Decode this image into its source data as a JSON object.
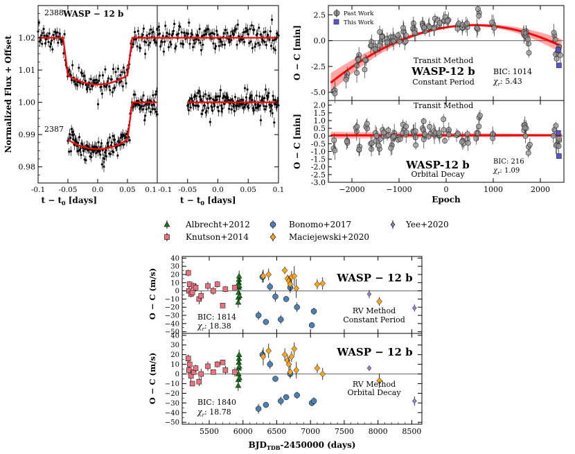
{
  "colors": {
    "model": "#ff0000",
    "zero": "#808080",
    "axis": "#000000",
    "past": "#999999",
    "this": "#5555cc",
    "albrecht": "#1a7a1a",
    "knutson": "#e8727e",
    "bonomo": "#4d7fb3",
    "maciejewski": "#f5a623",
    "yee": "#9b7fc9"
  },
  "panel_a": {
    "ylabel": "Normalized Flux + Offset",
    "xlabel_main": "t − t",
    "xlabel_sub": "0",
    "xlabel_unit": "[days]",
    "planet_label": "WASP − 12 b",
    "epoch_upper": "2388",
    "epoch_lower": "2387",
    "yticks": [
      "0.98",
      "0.99",
      "1.00",
      "1.01",
      "1.02"
    ],
    "xticks_left": [
      "-0.1",
      "-0.05",
      "0.0",
      "0.05",
      "0.1"
    ],
    "xticks_right": [
      "-0.1",
      "-0.05",
      "0.0",
      "0.05",
      "0.1"
    ]
  },
  "panel_b": {
    "ylabel": "O − C [min]",
    "xlabel": "Epoch",
    "top": {
      "legend_past": "Past Work",
      "legend_this": "This Work",
      "method": "Transit Method",
      "planet": "WASP-12 b",
      "model": "Constant Period",
      "bic": "BIC: 1014",
      "chi_label": "χ",
      "chi_sub": "r",
      "chi_value": ": 5.43",
      "yticks": [
        "2.5",
        "0.0",
        "-2.5",
        "-5.0"
      ]
    },
    "bottom": {
      "method": "Transit Method",
      "planet": "WASP-12 b",
      "model": "Orbital Decay",
      "bic": "BIC: 216",
      "chi_label": "χ",
      "chi_sub": "r",
      "chi_value": ": 1.09",
      "yticks": [
        "2.0",
        "1.5",
        "1.0",
        "0.5",
        "0.0",
        "-0.5",
        "-1.0",
        "-1.5",
        "-2.0",
        "-2.5",
        "-3.0"
      ]
    },
    "xticks": [
      "−2000",
      "−1000",
      "0",
      "1000",
      "2000"
    ]
  },
  "panel_c": {
    "legend": [
      {
        "label": "Albrecht+2012",
        "key": "albrecht"
      },
      {
        "label": "Knutson+2014",
        "key": "knutson"
      },
      {
        "label": "Bonomo+2017",
        "key": "bonomo"
      },
      {
        "label": "Maciejewski+2020",
        "key": "maciejewski"
      },
      {
        "label": "Yee+2020",
        "key": "yee"
      }
    ],
    "ylabel": "O − C (m/s)",
    "xlabel_main": "BJD",
    "xlabel_sub": "TDB",
    "xlabel_rest": "-2450000 (days)",
    "top": {
      "planet": "WASP − 12 b",
      "method": "RV Method",
      "model": "Constant Period",
      "bic": "BIC: 1814",
      "chi_label": "χ",
      "chi_sub": "r",
      "chi_value": ": 18.38"
    },
    "bottom": {
      "planet": "WASP − 12 b",
      "method": "RV Method",
      "model": "Orbital Decay",
      "bic": "BIC: 1840",
      "chi_label": "χ",
      "chi_sub": "r",
      "chi_value": ": 18.78"
    },
    "yticks": [
      "40",
      "30",
      "20",
      "10",
      "0",
      "−10",
      "−20",
      "−30",
      "−40",
      "−50"
    ],
    "xticks": [
      "5500",
      "6000",
      "6500",
      "7000",
      "7500",
      "8000",
      "8500"
    ]
  },
  "chart_data": [
    {
      "type": "scatter",
      "title": "WASP − 12 b transit light curves (epochs 2388, 2387)",
      "xlabel": "t − t0 [days]",
      "ylabel": "Normalized Flux + Offset",
      "xlim": [
        -0.1,
        0.1
      ],
      "ylim": [
        0.975,
        1.03
      ],
      "transit": {
        "depth": 0.0145,
        "t_ingress": 0.058,
        "duration_half": 0.05
      },
      "series": [
        {
          "name": "2388 (fit)",
          "baseline": 1.02,
          "noise": 0.0018
        },
        {
          "name": "2387 (fit)",
          "baseline": 1.0,
          "noise": 0.0018,
          "start": -0.05
        },
        {
          "name": "2388 (residuals)",
          "baseline": 1.02,
          "noise": 0.0018
        },
        {
          "name": "2387 (residuals)",
          "baseline": 1.0,
          "noise": 0.0018,
          "start": -0.05
        }
      ]
    },
    {
      "type": "scatter",
      "title": "Transit timing O − C, Constant Period",
      "xlabel": "Epoch",
      "ylabel": "O − C [min]",
      "xlim": [
        -2500,
        2500
      ],
      "ylim": [
        -5.8,
        3.4
      ],
      "model": {
        "type": "quadratic",
        "peak_epoch": 600,
        "peak_value": 1.5,
        "a": -6e-07
      },
      "past_epochs": [
        -2390,
        -2100,
        -1900,
        -1850,
        -1700,
        -1600,
        -1500,
        -1400,
        -1350,
        -1250,
        -1150,
        -1100,
        -1000,
        -900,
        -850,
        -700,
        -650,
        -500,
        -450,
        -350,
        -250,
        -150,
        -50,
        50,
        250,
        350,
        450,
        650,
        700,
        1000,
        1650,
        1700,
        1750,
        2300,
        2350,
        2400
      ],
      "past_values": [
        -4.9,
        -3.2,
        -2.4,
        -1.4,
        -1.9,
        -0.5,
        -0.9,
        -0.2,
        0.1,
        -0.3,
        0.0,
        0.2,
        0.3,
        0.9,
        0.5,
        1.1,
        0.7,
        1.6,
        0.9,
        1.3,
        1.3,
        1.5,
        1.9,
        2.0,
        1.5,
        1.2,
        1.3,
        1.2,
        2.7,
        1.6,
        0.6,
        0.9,
        -0.3,
        0.5,
        -1.2,
        -0.6
      ],
      "this_epochs": [
        2380,
        2395
      ],
      "this_values": [
        -0.9,
        -2.4
      ]
    },
    {
      "type": "scatter",
      "title": "Transit timing O − C, Orbital Decay",
      "xlabel": "Epoch",
      "ylabel": "O − C [min]",
      "xlim": [
        -2500,
        2500
      ],
      "ylim": [
        -3.0,
        2.3
      ],
      "model": {
        "type": "flat",
        "value": 0.05
      },
      "past_epochs": [
        -2390,
        -2100,
        -1900,
        -1850,
        -1700,
        -1600,
        -1500,
        -1400,
        -1350,
        -1250,
        -1150,
        -1100,
        -1000,
        -900,
        -850,
        -700,
        -650,
        -500,
        -450,
        -350,
        -250,
        -150,
        -50,
        50,
        250,
        350,
        450,
        650,
        700,
        1000,
        1650,
        1700,
        1750,
        2300,
        2350,
        2400
      ],
      "past_values": [
        -0.8,
        -0.3,
        0.3,
        -0.9,
        0.6,
        -0.5,
        0.2,
        -0.2,
        0.4,
        0.0,
        -0.6,
        0.2,
        -0.1,
        0.4,
        0.1,
        0.3,
        -0.1,
        0.5,
        0.0,
        0.6,
        0.1,
        0.0,
        0.4,
        0.3,
        0.1,
        -0.3,
        -0.2,
        0.2,
        1.2,
        0.1,
        0.7,
        0.5,
        -0.7,
        0.4,
        -0.6,
        -0.3
      ],
      "this_epochs": [
        2380,
        2395
      ],
      "this_values": [
        0.2,
        -1.3
      ]
    },
    {
      "type": "scatter",
      "title": "RV O − C, Constant Period",
      "xlabel": "BJD_TDB-2450000 (days)",
      "ylabel": "O − C (m/s)",
      "xlim": [
        5100,
        8650
      ],
      "ylim": [
        -52,
        42
      ],
      "series": [
        {
          "name": "Albrecht+2012",
          "x": [
            5930,
            5933,
            5935,
            5937,
            5939,
            5941,
            5943,
            5945,
            5947
          ],
          "y": [
            -14,
            -8,
            -2,
            4,
            10,
            14,
            18,
            6,
            -6
          ]
        },
        {
          "name": "Knutson+2014",
          "x": [
            5190,
            5200,
            5210,
            5230,
            5250,
            5270,
            5300,
            5350,
            5380,
            5480,
            5560,
            5620,
            5700,
            5740,
            5880
          ],
          "y": [
            22,
            0,
            8,
            -4,
            -2,
            6,
            4,
            -10,
            -6,
            6,
            0,
            8,
            -18,
            2,
            4
          ]
        },
        {
          "name": "Bonomo+2017",
          "x": [
            6230,
            6290,
            6340,
            6400,
            6480,
            6560,
            6640,
            6700,
            6800,
            7020,
            7050
          ],
          "y": [
            -30,
            17,
            -38,
            5,
            -7,
            -35,
            -10,
            4,
            -20,
            -42,
            -25
          ]
        },
        {
          "name": "Maciejewski+2020",
          "x": [
            6300,
            6380,
            6620,
            6660,
            6680,
            6700,
            6720,
            6760,
            6790,
            7100,
            7180,
            8020
          ],
          "y": [
            18,
            20,
            25,
            15,
            12,
            8,
            17,
            18,
            3,
            8,
            9,
            -13
          ]
        },
        {
          "name": "Yee+2020",
          "x": [
            7870,
            8540
          ],
          "y": [
            -4,
            -21
          ]
        }
      ]
    },
    {
      "type": "scatter",
      "title": "RV O − C, Orbital Decay",
      "xlabel": "BJD_TDB-2450000 (days)",
      "ylabel": "O − C (m/s)",
      "xlim": [
        5100,
        8650
      ],
      "ylim": [
        -52,
        42
      ],
      "series": [
        {
          "name": "Albrecht+2012",
          "x": [
            5930,
            5933,
            5935,
            5937,
            5939,
            5941,
            5943,
            5945,
            5947
          ],
          "y": [
            -12,
            -6,
            0,
            6,
            12,
            16,
            20,
            8,
            -4
          ]
        },
        {
          "name": "Knutson+2014",
          "x": [
            5190,
            5200,
            5210,
            5230,
            5250,
            5270,
            5300,
            5350,
            5380,
            5480,
            5560,
            5620,
            5700,
            5740,
            5880
          ],
          "y": [
            16,
            4,
            10,
            -2,
            -10,
            2,
            6,
            -8,
            0,
            8,
            2,
            10,
            12,
            4,
            2
          ]
        },
        {
          "name": "Bonomo+2017",
          "x": [
            6230,
            6290,
            6340,
            6400,
            6480,
            6560,
            6640,
            6700,
            6800,
            7020,
            7050
          ],
          "y": [
            -36,
            20,
            -32,
            10,
            -5,
            -28,
            -24,
            0,
            -22,
            -30,
            -28
          ]
        },
        {
          "name": "Maciejewski+2020",
          "x": [
            6300,
            6380,
            6620,
            6660,
            6680,
            6700,
            6720,
            6760,
            6790,
            7100,
            7180,
            8020
          ],
          "y": [
            18,
            24,
            20,
            14,
            10,
            2,
            18,
            26,
            4,
            6,
            0,
            -7
          ]
        },
        {
          "name": "Yee+2020",
          "x": [
            7870,
            8540
          ],
          "y": [
            6,
            -28
          ]
        }
      ]
    }
  ]
}
